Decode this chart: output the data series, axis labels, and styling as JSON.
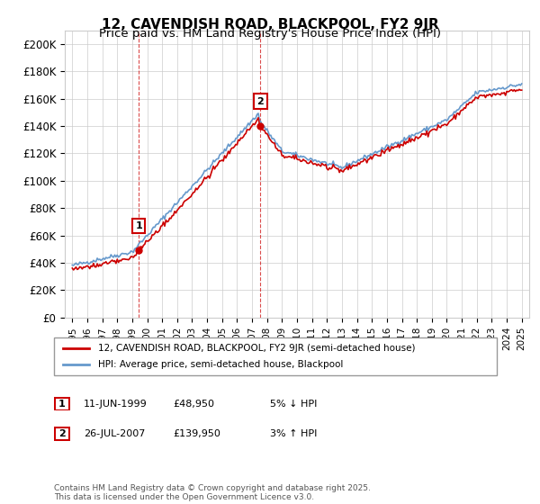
{
  "title": "12, CAVENDISH ROAD, BLACKPOOL, FY2 9JR",
  "subtitle": "Price paid vs. HM Land Registry's House Price Index (HPI)",
  "legend_line1": "12, CAVENDISH ROAD, BLACKPOOL, FY2 9JR (semi-detached house)",
  "legend_line2": "HPI: Average price, semi-detached house, Blackpool",
  "sale1_label": "1",
  "sale1_date": "11-JUN-1999",
  "sale1_price": "£48,950",
  "sale1_pct": "5% ↓ HPI",
  "sale1_year": 1999.44,
  "sale1_value": 48950,
  "sale2_label": "2",
  "sale2_date": "26-JUL-2007",
  "sale2_price": "£139,950",
  "sale2_pct": "3% ↑ HPI",
  "sale2_year": 2007.56,
  "sale2_value": 139950,
  "ylabel_vals": [
    0,
    20000,
    40000,
    60000,
    80000,
    100000,
    120000,
    140000,
    160000,
    180000,
    200000
  ],
  "ylabel_labels": [
    "£0",
    "£20K",
    "£40K",
    "£60K",
    "£80K",
    "£100K",
    "£120K",
    "£140K",
    "£160K",
    "£180K",
    "£200K"
  ],
  "ylim": [
    0,
    210000
  ],
  "xlim_min": 1994.5,
  "xlim_max": 2025.5,
  "line_color_red": "#cc0000",
  "line_color_blue": "#6699cc",
  "dashed_color": "#cc0000",
  "background_color": "#ffffff",
  "grid_color": "#cccccc",
  "title_fontsize": 11,
  "subtitle_fontsize": 9.5,
  "annotation_box_color": "#cc0000",
  "footer": "Contains HM Land Registry data © Crown copyright and database right 2025.\nThis data is licensed under the Open Government Licence v3.0."
}
